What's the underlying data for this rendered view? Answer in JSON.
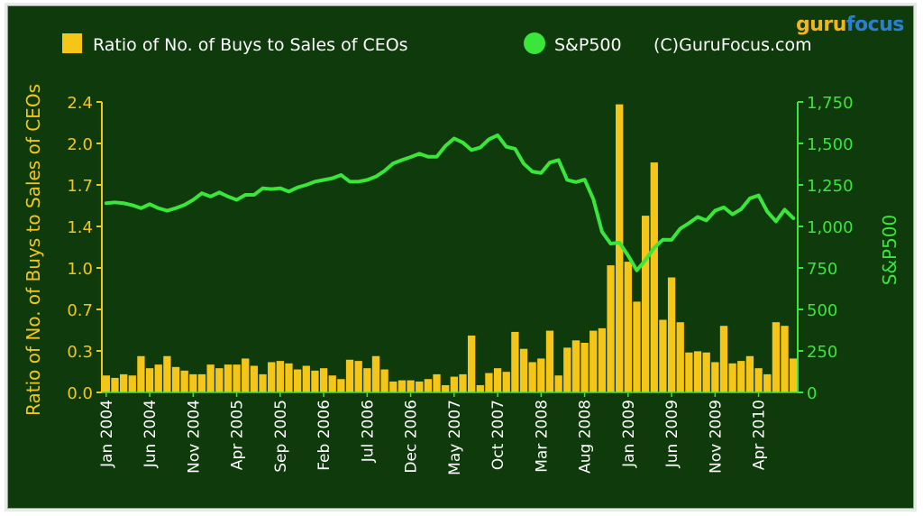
{
  "logo": {
    "part1": "guru",
    "part2": "focus"
  },
  "chart_data": {
    "type": "bar",
    "legend": [
      {
        "name": "Ratio of No. of Buys to Sales of CEOs",
        "color": "#f5c518"
      },
      {
        "name": "S&P500",
        "color": "#39e639"
      },
      {
        "name": "(C)GuruFocus.com"
      }
    ],
    "ylabel": "Ratio of No. of Buys to Sales of CEOs",
    "y2label": "S&P500",
    "ylim": [
      0,
      2.4
    ],
    "y2lim": [
      0,
      1750
    ],
    "yticks": [
      "0.0",
      "0.3",
      "0.7",
      "1.0",
      "1.4",
      "1.7",
      "2.0",
      "2.4"
    ],
    "y2ticks": [
      "0",
      "250",
      "500",
      "750",
      "1,000",
      "1,250",
      "1,500",
      "1,750"
    ],
    "xtick_labels": [
      "Jan 2004",
      "Jun 2004",
      "Nov 2004",
      "Apr 2005",
      "Sep 2005",
      "Feb 2006",
      "Jul 2006",
      "Dec 2006",
      "May 2007",
      "Oct 2007",
      "Mar 2008",
      "Aug 2008",
      "Jan 2009",
      "Jun 2009",
      "Nov 2009",
      "Apr 2010"
    ],
    "start_month": "2004-01",
    "series": [
      {
        "name": "Ratio of No. of Buys to Sales of CEOs",
        "type": "bar",
        "values": [
          0.14,
          0.12,
          0.15,
          0.14,
          0.3,
          0.2,
          0.23,
          0.3,
          0.21,
          0.18,
          0.15,
          0.15,
          0.23,
          0.2,
          0.23,
          0.23,
          0.28,
          0.22,
          0.15,
          0.25,
          0.26,
          0.24,
          0.19,
          0.22,
          0.18,
          0.2,
          0.14,
          0.11,
          0.27,
          0.26,
          0.2,
          0.3,
          0.19,
          0.09,
          0.1,
          0.1,
          0.09,
          0.11,
          0.15,
          0.06,
          0.13,
          0.15,
          0.47,
          0.06,
          0.16,
          0.2,
          0.17,
          0.5,
          0.36,
          0.25,
          0.28,
          0.51,
          0.14,
          0.37,
          0.43,
          0.41,
          0.51,
          0.53,
          1.05,
          2.38,
          1.08,
          0.75,
          1.46,
          1.9,
          0.6,
          0.95,
          0.58,
          0.33,
          0.34,
          0.33,
          0.25,
          0.55,
          0.24,
          0.26,
          0.3,
          0.2,
          0.15,
          0.58,
          0.55,
          0.28
        ]
      },
      {
        "name": "S&P500",
        "type": "line",
        "values": [
          1140,
          1145,
          1140,
          1128,
          1110,
          1134,
          1110,
          1095,
          1110,
          1130,
          1160,
          1200,
          1180,
          1205,
          1180,
          1160,
          1190,
          1190,
          1230,
          1225,
          1230,
          1210,
          1235,
          1250,
          1270,
          1280,
          1290,
          1310,
          1270,
          1270,
          1280,
          1300,
          1335,
          1380,
          1400,
          1418,
          1438,
          1420,
          1420,
          1485,
          1530,
          1505,
          1460,
          1475,
          1525,
          1549,
          1480,
          1468,
          1378,
          1330,
          1322,
          1385,
          1400,
          1280,
          1267,
          1282,
          1165,
          968,
          896,
          903,
          825,
          735,
          798,
          872,
          920,
          919,
          987,
          1020,
          1057,
          1036,
          1095,
          1115,
          1073,
          1104,
          1169,
          1187,
          1089,
          1030,
          1101,
          1049
        ]
      }
    ]
  }
}
